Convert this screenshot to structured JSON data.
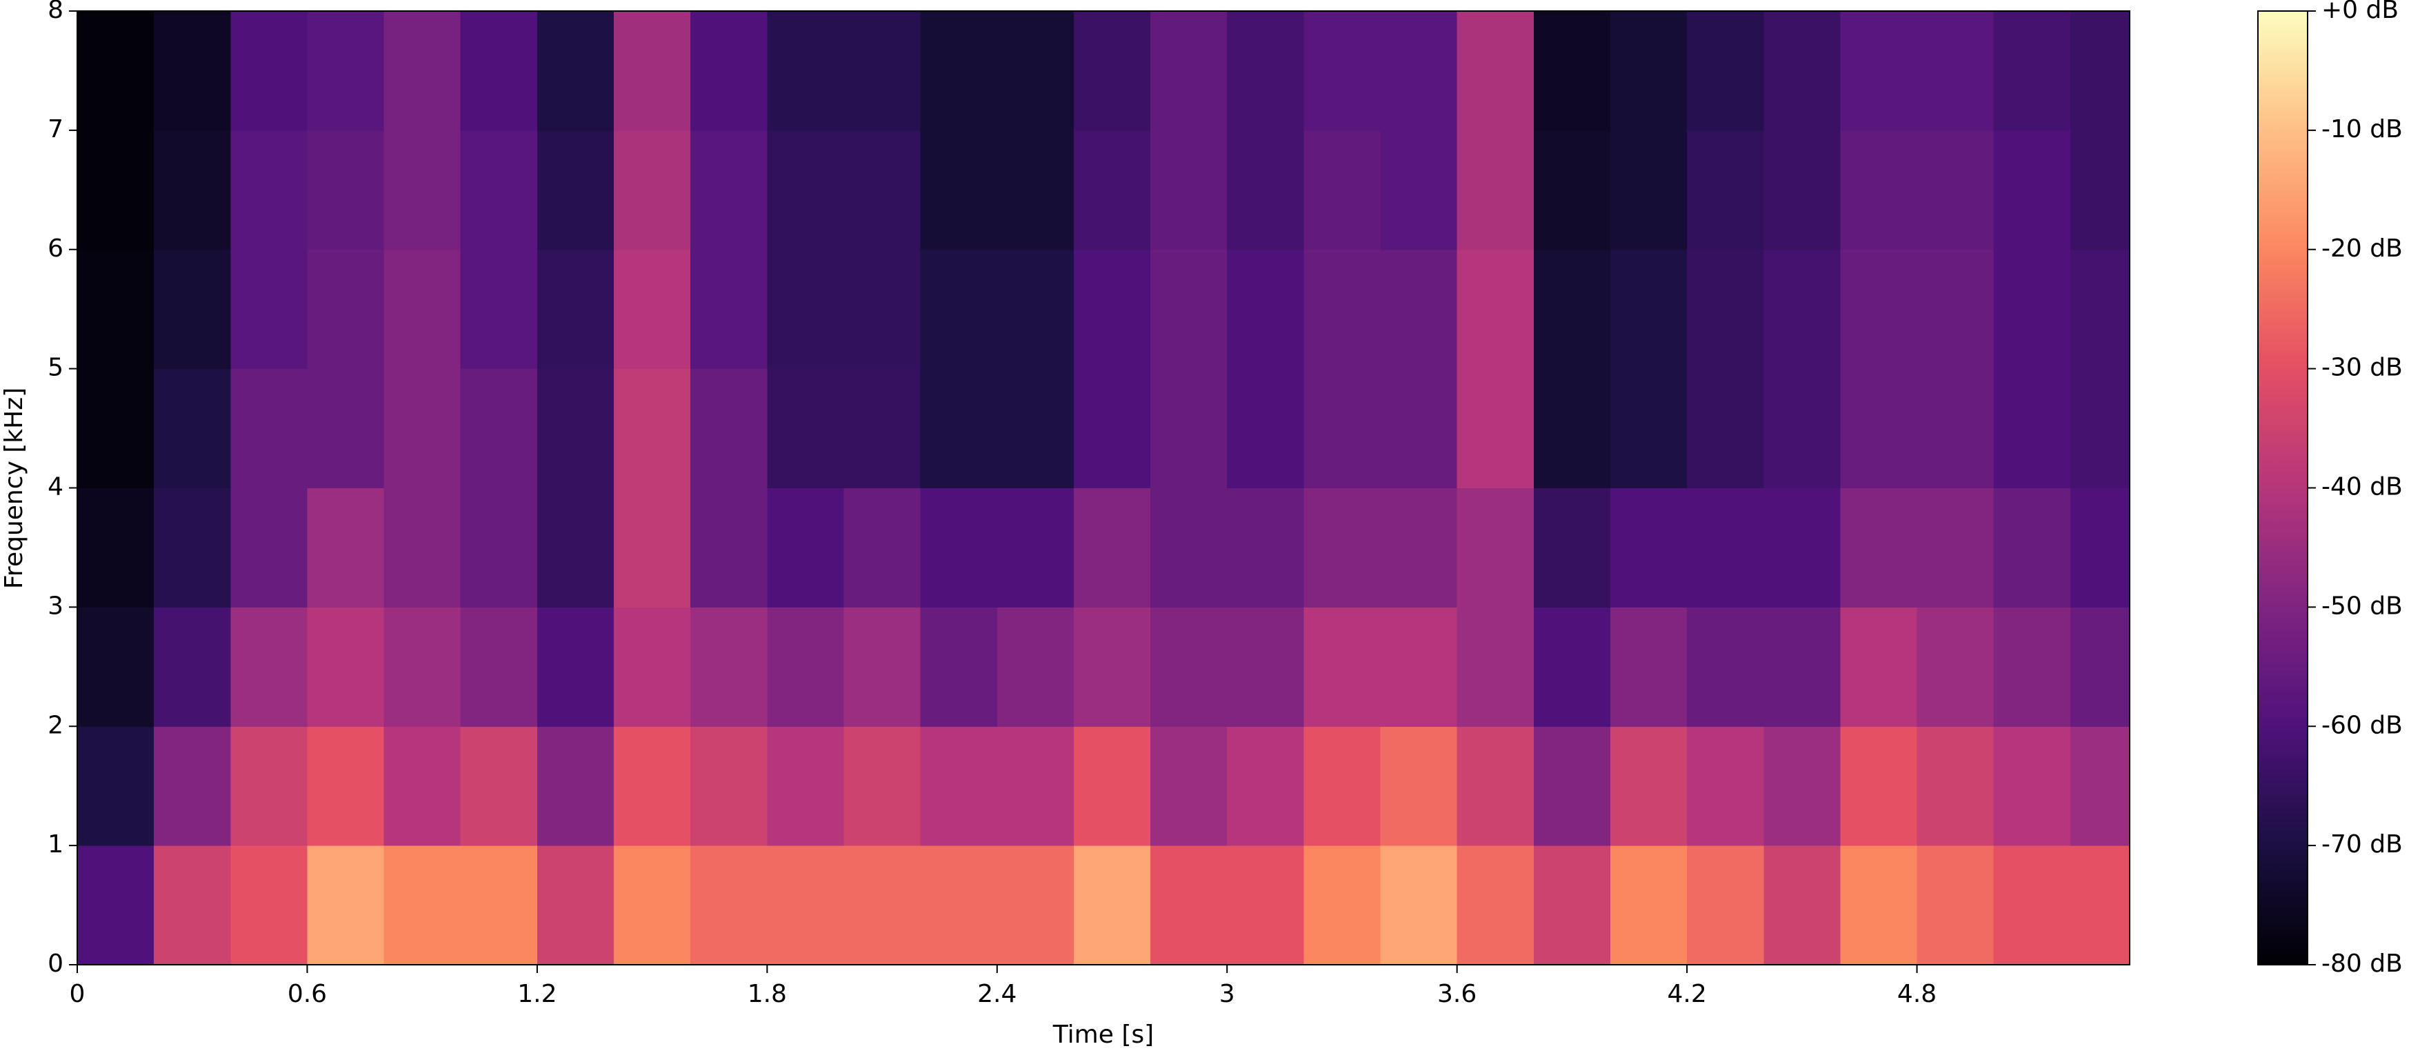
{
  "chart_data": {
    "type": "spectrogram",
    "xlabel": "Time [s]",
    "ylabel": "Frequency [kHz]",
    "xlim": [
      0,
      5.355
    ],
    "ylim": [
      0,
      8
    ],
    "xticks": [
      0,
      0.6,
      1.2,
      1.8,
      2.4,
      3,
      3.6,
      4.2,
      4.8
    ],
    "yticks": [
      0,
      1,
      2,
      3,
      4,
      5,
      6,
      7,
      8
    ],
    "x": [
      0.1,
      0.3,
      0.5,
      0.7,
      0.9,
      1.1,
      1.3,
      1.5,
      1.7,
      1.9,
      2.1,
      2.3,
      2.5,
      2.7,
      2.9,
      3.1,
      3.3,
      3.5,
      3.7,
      3.9,
      4.1,
      4.3,
      4.5,
      4.7,
      4.9,
      5.1,
      5.3
    ],
    "y": [
      0.5,
      1.5,
      2.5,
      3.5,
      4.5,
      5.5,
      6.5,
      7.5
    ],
    "values": [
      [
        -60,
        -35,
        -30,
        -15,
        -20,
        -20,
        -35,
        -20,
        -25,
        -25,
        -25,
        -25,
        -25,
        -15,
        -30,
        -30,
        -20,
        -15,
        -25,
        -35,
        -20,
        -25,
        -35,
        -20,
        -25,
        -30,
        -30
      ],
      [
        -70,
        -50,
        -35,
        -30,
        -40,
        -35,
        -50,
        -30,
        -35,
        -40,
        -35,
        -40,
        -40,
        -30,
        -45,
        -40,
        -30,
        -25,
        -35,
        -50,
        -35,
        -40,
        -45,
        -30,
        -35,
        -40,
        -45
      ],
      [
        -74,
        -62,
        -45,
        -40,
        -45,
        -50,
        -60,
        -40,
        -45,
        -50,
        -45,
        -55,
        -50,
        -45,
        -50,
        -50,
        -40,
        -40,
        -45,
        -60,
        -50,
        -55,
        -55,
        -40,
        -45,
        -50,
        -55
      ],
      [
        -76,
        -68,
        -55,
        -45,
        -50,
        -55,
        -65,
        -38,
        -55,
        -60,
        -55,
        -60,
        -60,
        -50,
        -55,
        -55,
        -50,
        -50,
        -45,
        -65,
        -60,
        -60,
        -60,
        -50,
        -50,
        -55,
        -60
      ],
      [
        -78,
        -70,
        -55,
        -55,
        -50,
        -55,
        -65,
        -38,
        -55,
        -65,
        -65,
        -70,
        -70,
        -60,
        -55,
        -60,
        -55,
        -55,
        -40,
        -72,
        -70,
        -65,
        -62,
        -55,
        -55,
        -60,
        -62
      ],
      [
        -78,
        -72,
        -58,
        -55,
        -50,
        -58,
        -66,
        -40,
        -58,
        -66,
        -66,
        -70,
        -70,
        -60,
        -55,
        -60,
        -55,
        -55,
        -40,
        -72,
        -70,
        -65,
        -62,
        -55,
        -55,
        -60,
        -62
      ],
      [
        -79,
        -74,
        -58,
        -56,
        -52,
        -58,
        -68,
        -42,
        -58,
        -66,
        -66,
        -72,
        -72,
        -62,
        -56,
        -62,
        -56,
        -58,
        -42,
        -74,
        -72,
        -66,
        -64,
        -56,
        -56,
        -60,
        -64
      ],
      [
        -79,
        -75,
        -60,
        -58,
        -52,
        -60,
        -70,
        -44,
        -60,
        -68,
        -68,
        -72,
        -72,
        -64,
        -56,
        -62,
        -58,
        -58,
        -42,
        -75,
        -72,
        -68,
        -64,
        -58,
        -58,
        -62,
        -64
      ]
    ],
    "colormap": "magma",
    "zlim": [
      -80,
      0
    ],
    "colorbar_ticks": [
      {
        "value": 0,
        "label": "+0 dB"
      },
      {
        "value": -10,
        "label": "-10 dB"
      },
      {
        "value": -20,
        "label": "-20 dB"
      },
      {
        "value": -30,
        "label": "-30 dB"
      },
      {
        "value": -40,
        "label": "-40 dB"
      },
      {
        "value": -50,
        "label": "-50 dB"
      },
      {
        "value": -60,
        "label": "-60 dB"
      },
      {
        "value": -70,
        "label": "-70 dB"
      },
      {
        "value": -80,
        "label": "-80 dB"
      }
    ]
  }
}
